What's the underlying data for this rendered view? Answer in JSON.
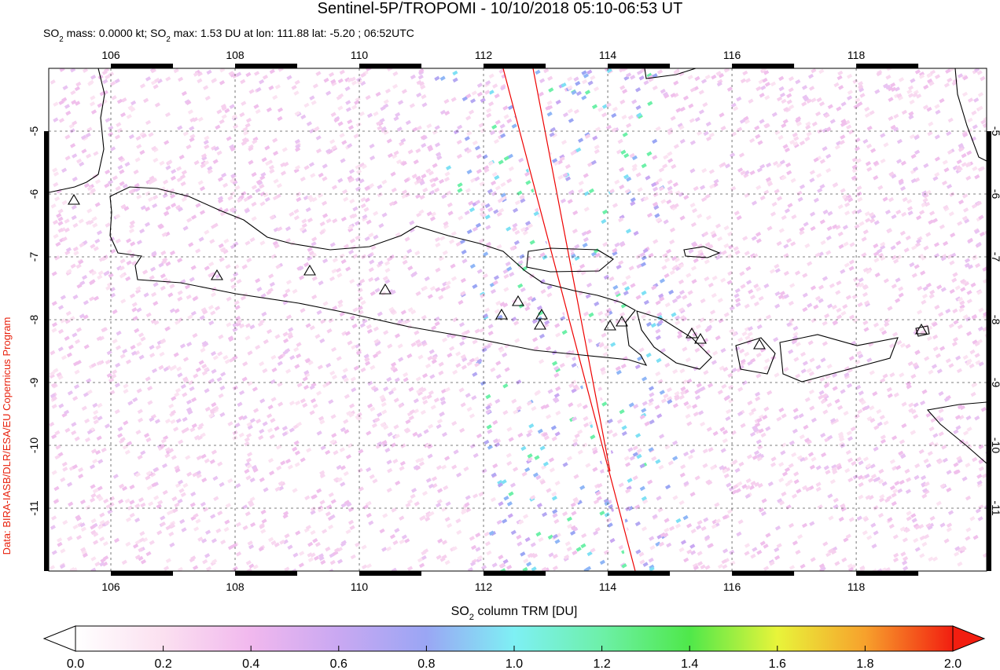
{
  "map": {
    "title": "Sentinel-5P/TROPOMI - 10/10/2018 05:10-06:53 UT",
    "subtitle": [
      "SO",
      "2",
      " mass: 0.0000 kt; SO",
      "2",
      " max: 1.53 DU at lon: 111.88 lat: -5.20 ; 06:52UTC"
    ],
    "credit": "Data: BIRA-IASB/DLR/ESA/EU Copernicus Program",
    "xlim": [
      105.0,
      120.1
    ],
    "ylim": [
      -12.0,
      -4.0
    ],
    "xticks": [
      106,
      108,
      110,
      112,
      114,
      116,
      118
    ],
    "yticks": [
      -5,
      -6,
      -7,
      -8,
      -9,
      -10,
      -11
    ],
    "colorbar": {
      "label": [
        "SO",
        "2",
        " column TRM [DU]"
      ],
      "lim": [
        0,
        2
      ],
      "ticks": [
        {
          "value": 0,
          "label": "0.0"
        },
        {
          "value": 0.2,
          "label": "0.2"
        },
        {
          "value": 0.4,
          "label": "0.4"
        },
        {
          "value": 0.6,
          "label": "0.6"
        },
        {
          "value": 0.8,
          "label": "0.8"
        },
        {
          "value": 1.0,
          "label": "1.0"
        },
        {
          "value": 1.2,
          "label": "1.2"
        },
        {
          "value": 1.4,
          "label": "1.4"
        },
        {
          "value": 1.6,
          "label": "1.6"
        },
        {
          "value": 1.8,
          "label": "1.8"
        },
        {
          "value": 2.0,
          "label": "2.0"
        }
      ]
    }
  }
}
